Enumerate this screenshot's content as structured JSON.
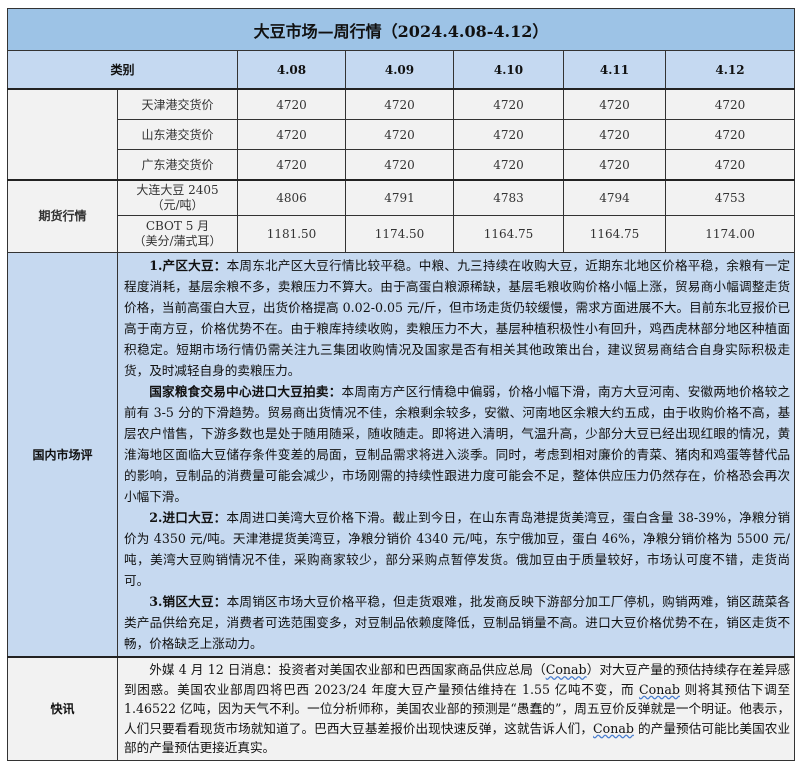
{
  "title": "大豆市场—周行情（2024.4.08-4.12）",
  "header": {
    "category": "类别",
    "dates": [
      "4.08",
      "4.09",
      "4.10",
      "4.11",
      "4.12"
    ]
  },
  "spot_rows": [
    {
      "label": "天津港交货价",
      "values": [
        "4720",
        "4720",
        "4720",
        "4720",
        "4720"
      ]
    },
    {
      "label": "山东港交货价",
      "values": [
        "4720",
        "4720",
        "4720",
        "4720",
        "4720"
      ]
    },
    {
      "label": "广东港交货价",
      "values": [
        "4720",
        "4720",
        "4720",
        "4720",
        "4720"
      ]
    }
  ],
  "futures": {
    "category": "期货行情",
    "rows": [
      {
        "label": "大连大豆 2405",
        "unit": "（元/吨）",
        "values": [
          "4806",
          "4791",
          "4783",
          "4794",
          "4753"
        ]
      },
      {
        "label": "CBOT 5 月",
        "unit": "（美分/蒲式耳）",
        "values": [
          "1181.50",
          "1174.50",
          "1164.75",
          "1164.75",
          "1174.00"
        ]
      }
    ]
  },
  "domestic": {
    "category": "国内市场评",
    "paragraphs": [
      {
        "head": "1.产区大豆：",
        "text": "本周东北产区大豆行情比较平稳。中粮、九三持续在收购大豆，近期东北地区价格平稳，余粮有一定程度消耗，基层余粮不多，卖粮压力不算大。由于高蛋白粮源稀缺，基层毛粮收购价格小幅上涨，贸易商小幅调整走货价格，当前高蛋白大豆，出货价格提高 0.02-0.05 元/斤，但市场走货仍较缓慢，需求方面进展不大。目前东北豆报价已高于南方豆，价格优势不在。由于粮库持续收购，卖粮压力不大，基层种植积极性小有回升，鸡西虎林部分地区种植面积稳定。短期市场行情仍需关注九三集团收购情况及国家是否有相关其他政策出台，建议贸易商结合自身实际积极走货，及时减轻自身的卖粮压力。"
      },
      {
        "head": "国家粮食交易中心进口大豆拍卖：",
        "text": "本周南方产区行情稳中偏弱，价格小幅下滑，南方大豆河南、安徽两地价格较之前有 3-5 分的下滑趋势。贸易商出货情况不佳，余粮剩余较多，安徽、河南地区余粮大约五成，由于收购价格不高，基层农户惜售，下游多数也是处于随用随采，随收随走。即将进入清明，气温升高，少部分大豆已经出现红眼的情况，黄淮海地区面临大豆储存条件变差的局面，豆制品需求将进入淡季。同时，考虑到相对廉价的青菜、猪肉和鸡蛋等替代品的影响，豆制品的消费量可能会减少，市场刚需的持续性跟进力度可能会不足，整体供应压力仍然存在，价格恐会再次小幅下滑。"
      },
      {
        "head": "2.进口大豆：",
        "text": "本周进口美湾大豆价格下滑。截止到今日，在山东青岛港提货美湾豆，蛋白含量 38-39%，净粮分销价为 4350 元/吨。天津港提货美湾豆，净粮分销价 4340 元/吨，东宁俄加豆，蛋白 46%，净粮分销价格为 5500 元/吨，美湾大豆购销情况不佳，采购商家较少，部分采购点暂停发货。俄加豆由于质量较好，市场认可度不错，走货尚可。"
      },
      {
        "head": "3.销区大豆：",
        "text": "本周销区市场大豆价格平稳，但走货艰难，批发商反映下游部分加工厂停机，购销两难，销区蔬菜各类产品供给充足，消费者可选范围变多，对豆制品依赖度降低，豆制品销量不高。进口大豆价格优势不在，销区走货不畅，价格缺乏上涨动力。"
      }
    ]
  },
  "news": {
    "category": "快讯",
    "segments": [
      "外媒 4 月 12 日消息：投资者对美国农业部和巴西国家商品供应总局（",
      "Conab",
      "）对大豆产量的预估持续存在差异感到困惑。美国农业部周四将巴西 2023/24 年度大豆产量预估维持在 1.55 亿吨不变，而 ",
      "Conab",
      " 则将其预估下调至 1.46522 亿吨，因为天气不利。一位分析师称，美国农业部的预测是“愚蠢的”，周五豆价反弹就是一个明证。他表示，人们只要看看现货市场就知道了。巴西大豆基差报价出现快速反弹，这就告诉人们，",
      "Conab",
      " 的产量预估可能比美国农业部的产量预估更接近真实。"
    ]
  },
  "colors": {
    "title_bg": "#9dc3e6",
    "header_bg": "#c5d9f1",
    "comment_bg": "#c6d9f0",
    "cell_bg": "#f2f2f2"
  }
}
